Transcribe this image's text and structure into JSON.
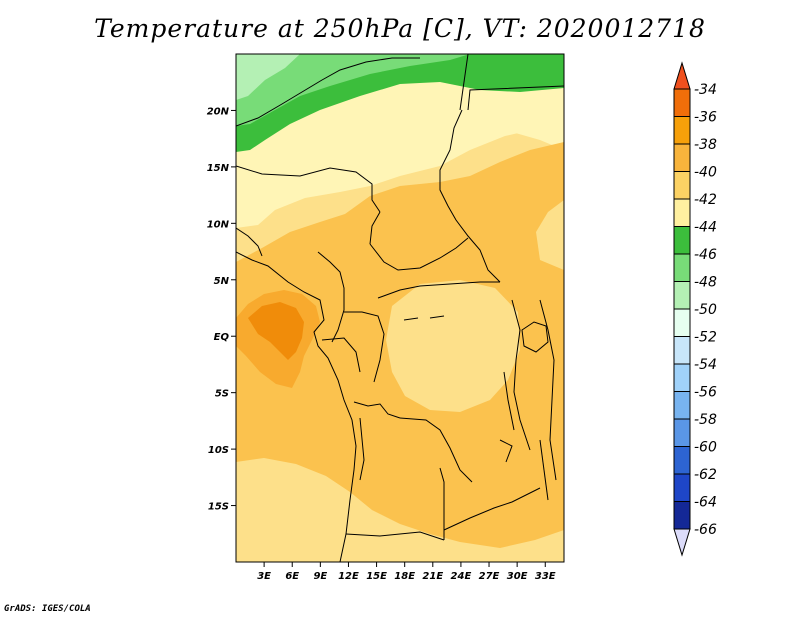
{
  "title": "Temperature at 250hPa [C], VT: 2020012718",
  "credit": "GrADS: IGES/COLA",
  "map": {
    "lon_range": [
      0,
      35
    ],
    "lat_range": [
      -20,
      25
    ],
    "lat_ticks": [
      {
        "value": 20,
        "label": "20N"
      },
      {
        "value": 15,
        "label": "15N"
      },
      {
        "value": 10,
        "label": "10N"
      },
      {
        "value": 5,
        "label": "5N"
      },
      {
        "value": 0,
        "label": "EQ"
      },
      {
        "value": -5,
        "label": "5S"
      },
      {
        "value": -10,
        "label": "10S"
      },
      {
        "value": -15,
        "label": "15S"
      }
    ],
    "lon_ticks": [
      {
        "value": 3,
        "label": "3E"
      },
      {
        "value": 6,
        "label": "6E"
      },
      {
        "value": 9,
        "label": "9E"
      },
      {
        "value": 12,
        "label": "12E"
      },
      {
        "value": 15,
        "label": "15E"
      },
      {
        "value": 18,
        "label": "18E"
      },
      {
        "value": 21,
        "label": "21E"
      },
      {
        "value": 24,
        "label": "24E"
      },
      {
        "value": 27,
        "label": "27E"
      },
      {
        "value": 30,
        "label": "30E"
      },
      {
        "value": 33,
        "label": "33E"
      }
    ],
    "field_colors": {
      "c36_34": "#f08c0a",
      "c38_36": "#f8aa2e",
      "c40_38": "#fbc24e",
      "c42_40": "#fde08a",
      "c44_42": "#fff5b6",
      "c46_44": "#3cbe3c",
      "c48_46": "#78dc78",
      "c50_48": "#b4f0b4"
    }
  },
  "colorbar": {
    "labels": [
      "-34",
      "-36",
      "-38",
      "-40",
      "-42",
      "-44",
      "-46",
      "-48",
      "-50",
      "-52",
      "-54",
      "-56",
      "-58",
      "-60",
      "-62",
      "-64",
      "-66"
    ],
    "top_color": "#f0501e",
    "bottom_color": "#dcdcfa",
    "colors": [
      "#f06e0a",
      "#f6a00a",
      "#f8b43c",
      "#fcd264",
      "#fff0a0",
      "#3cbe3c",
      "#78dc78",
      "#b4f0b4",
      "#e6fff0",
      "#c8e6fa",
      "#a0d2fa",
      "#78b4f0",
      "#5a96e6",
      "#2d64d2",
      "#1e46c8",
      "#142896",
      "#0a1064"
    ]
  }
}
